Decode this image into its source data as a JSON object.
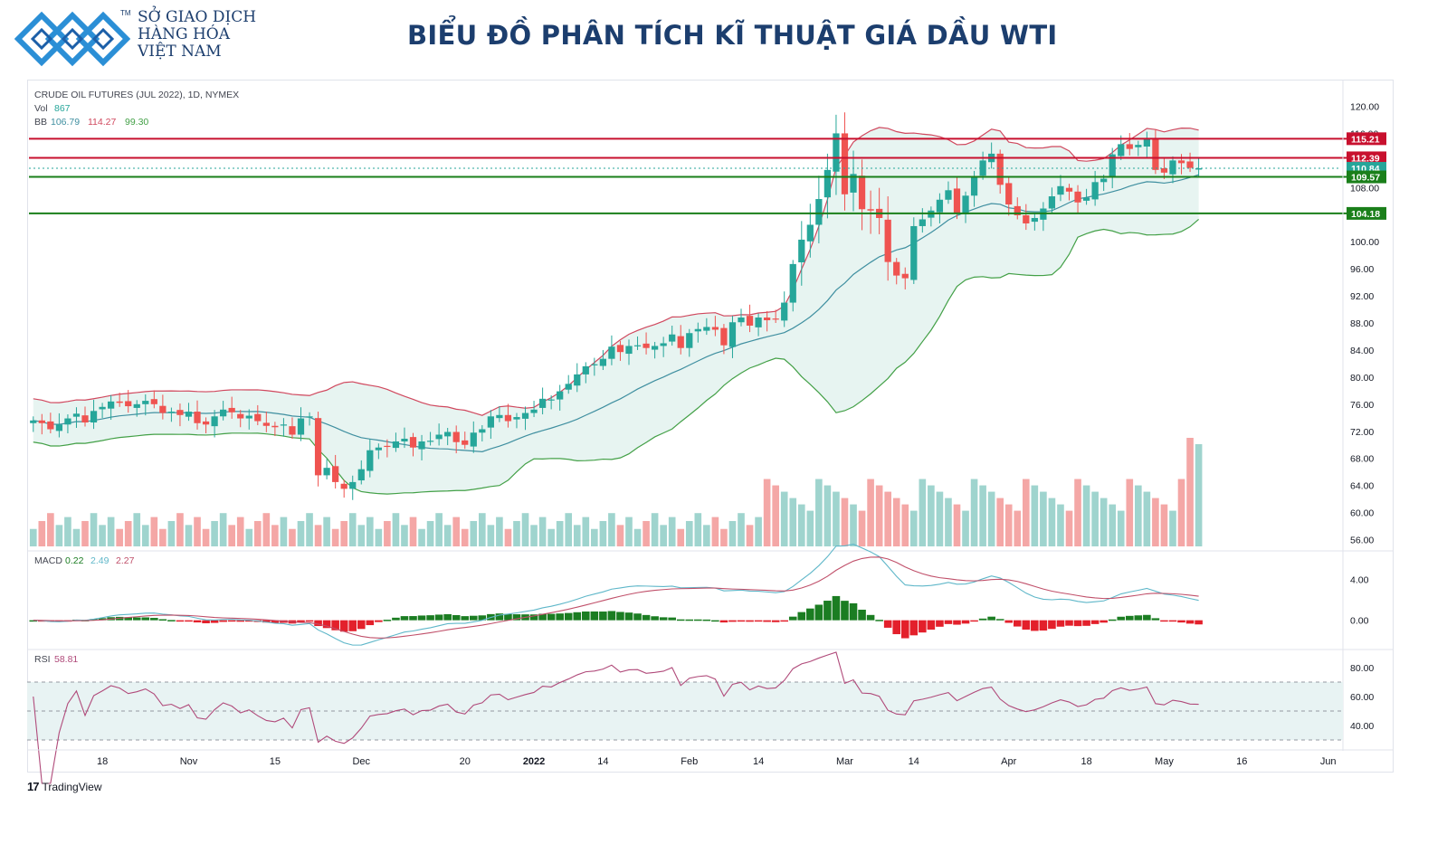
{
  "brand": {
    "tm": "TM",
    "line1": "SỞ GIAO DỊCH",
    "line2": "HÀNG HÓA",
    "line3": "VIỆT NAM"
  },
  "title": "BIỂU ĐỒ PHÂN TÍCH KĨ THUẬT GIÁ DẦU WTI",
  "footer": {
    "tv_label": "TradingView",
    "tv_mark": "17"
  },
  "colors": {
    "up": "#26a69a",
    "down": "#ef5350",
    "upVol": "#9fd4ce",
    "downVol": "#f4a7a6",
    "bbUpper": "#d0485e",
    "bbBasis": "#3f8fa0",
    "bbLower": "#43a047",
    "bbFill": "#e3f2ef",
    "resistance": "#c8102e",
    "support": "#1a7f1a",
    "macdLine": "#5fb7c9",
    "signalLine": "#c0506a",
    "histUp": "#1b7d22",
    "histDown": "#e3202b",
    "rsiLine": "#b04a7a",
    "rsiBand": "#e8f3f3",
    "brand": "#1c3e6e"
  },
  "chart_data": [
    {
      "type": "candlestick",
      "title": "",
      "legend": {
        "symbol": "CRUDE OIL FUTURES (JUL 2022), 1D, NYMEX",
        "vol_label": "Vol",
        "vol_value": "867",
        "bb_label": "BB",
        "bb_basis": "106.79",
        "bb_upper": "114.27",
        "bb_lower": "99.30"
      },
      "ylim": [
        55,
        121
      ],
      "y_ticks": [
        "120.00",
        "116.00",
        "112.00",
        "108.00",
        "104.00",
        "100.00",
        "96.00",
        "92.00",
        "88.00",
        "84.00",
        "80.00",
        "76.00",
        "72.00",
        "68.00",
        "64.00",
        "60.00",
        "56.00"
      ],
      "x_ticks": [
        {
          "label": "18",
          "bar": 8
        },
        {
          "label": "Nov",
          "bar": 18
        },
        {
          "label": "15",
          "bar": 28
        },
        {
          "label": "Dec",
          "bar": 38
        },
        {
          "label": "20",
          "bar": 50
        },
        {
          "label": "2022",
          "bar": 58
        },
        {
          "label": "14",
          "bar": 66
        },
        {
          "label": "Feb",
          "bar": 76
        },
        {
          "label": "14",
          "bar": 84
        },
        {
          "label": "Mar",
          "bar": 94
        },
        {
          "label": "14",
          "bar": 102
        },
        {
          "label": "Apr",
          "bar": 113
        },
        {
          "label": "18",
          "bar": 122
        },
        {
          "label": "May",
          "bar": 131
        },
        {
          "label": "16",
          "bar": 140
        },
        {
          "label": "Jun",
          "bar": 150
        }
      ],
      "levels": [
        {
          "label": "115.21",
          "value": 115.21,
          "kind": "resistance"
        },
        {
          "label": "112.39",
          "value": 112.39,
          "kind": "resistance"
        },
        {
          "label": "110.84",
          "value": 110.84,
          "kind": "last"
        },
        {
          "label": "109.57",
          "value": 109.57,
          "kind": "support"
        },
        {
          "label": "104.18",
          "value": 104.18,
          "kind": "support"
        }
      ],
      "closes": [
        73.6,
        73.2,
        72.3,
        73.0,
        73.9,
        74.6,
        73.3,
        75.0,
        75.6,
        76.4,
        76.2,
        75.7,
        76.0,
        76.5,
        76.0,
        74.7,
        74.9,
        74.4,
        74.9,
        73.2,
        73.0,
        74.2,
        75.2,
        74.8,
        73.9,
        74.3,
        73.5,
        72.8,
        72.6,
        73.0,
        71.5,
        73.9,
        74.2,
        65.5,
        66.6,
        64.5,
        63.5,
        64.5,
        66.4,
        69.2,
        69.6,
        69.8,
        70.5,
        70.9,
        69.6,
        70.5,
        70.6,
        71.5,
        71.9,
        70.4,
        70.0,
        71.8,
        72.3,
        74.2,
        74.4,
        73.5,
        74.1,
        74.7,
        75.2,
        76.8,
        76.7,
        77.9,
        79.0,
        80.4,
        81.6,
        81.9,
        82.7,
        84.5,
        83.7,
        84.6,
        84.7,
        84.3,
        84.6,
        85.0,
        86.3,
        84.3,
        86.5,
        87.1,
        87.4,
        87.0,
        84.7,
        88.1,
        88.8,
        87.6,
        88.8,
        88.4,
        88.6,
        91.0,
        96.7,
        100.3,
        102.5,
        106.3,
        110.6,
        116.0,
        107.0,
        110.0,
        104.8,
        104.6,
        103.5,
        97.0,
        95.0,
        94.6,
        102.3,
        103.3,
        104.6,
        106.2,
        107.6,
        104.3,
        106.8,
        109.5,
        112.0,
        113.0,
        108.4,
        105.5,
        103.9,
        102.7,
        103.5,
        104.9,
        106.7,
        108.2,
        107.4,
        105.8,
        106.5,
        108.8,
        109.3,
        112.9,
        114.4,
        113.7,
        114.3,
        115.3,
        110.6,
        110.2,
        112.0,
        111.6,
        110.9,
        110.84
      ]
    },
    {
      "type": "line",
      "name": "MACD",
      "label": "MACD",
      "v1": "0.22",
      "v2": "2.49",
      "v3": "2.27",
      "ylim": [
        -2.5,
        6.5
      ],
      "y_ticks": [
        "4.00",
        "0.00"
      ]
    },
    {
      "type": "line",
      "name": "RSI",
      "label": "RSI",
      "value": "58.81",
      "ylim": [
        25,
        90
      ],
      "bands": [
        30,
        70
      ],
      "y_ticks": [
        "80.00",
        "60.00",
        "40.00"
      ]
    }
  ]
}
